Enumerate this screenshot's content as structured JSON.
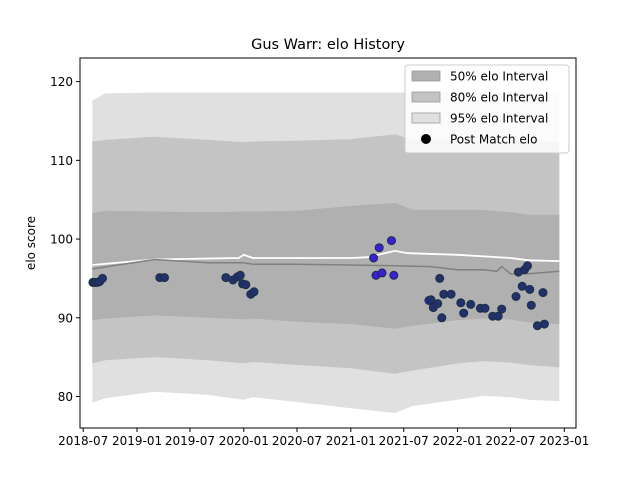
{
  "chart_data": {
    "type": "line",
    "title": "Gus Warr: elo History",
    "xlabel": "",
    "ylabel": "elo score",
    "xlim": [
      "2018-06-20",
      "2023-02-10"
    ],
    "ylim": [
      76,
      123
    ],
    "x_ticks": [
      "2018-07",
      "2019-01",
      "2019-07",
      "2020-01",
      "2020-07",
      "2021-01",
      "2021-07",
      "2022-01",
      "2022-07",
      "2023-01"
    ],
    "x_tick_labels": [
      "2018-07",
      "2019-01",
      "2019-07",
      "2020-01",
      "2020-07",
      "2021-01",
      "2021-07",
      "2022-01",
      "2022-07",
      "2023-01"
    ],
    "y_ticks": [
      80,
      90,
      100,
      110,
      120
    ],
    "y_tick_labels": [
      "80",
      "90",
      "100",
      "110",
      "120"
    ],
    "grid": false,
    "legend_position": "top-right",
    "legend": [
      {
        "label": "50% elo Interval",
        "color": "#b0b0b0",
        "kind": "patch"
      },
      {
        "label": "80% elo Interval",
        "color": "#c4c4c4",
        "kind": "patch"
      },
      {
        "label": "95% elo Interval",
        "color": "#e0e0e0",
        "kind": "patch"
      },
      {
        "label": "Post Match elo",
        "color": "#000000",
        "kind": "marker"
      }
    ],
    "intervals": {
      "dates": [
        "2018-08-01",
        "2018-09-15",
        "2019-03-01",
        "2019-09-01",
        "2020-01-01",
        "2020-02-01",
        "2020-07-01",
        "2021-01-01",
        "2021-06-01",
        "2021-08-01",
        "2022-01-01",
        "2022-04-01",
        "2022-07-01",
        "2022-09-01",
        "2022-12-15"
      ],
      "band95_upper": [
        117.6,
        118.5,
        118.6,
        118.6,
        118.6,
        118.6,
        118.6,
        118.6,
        118.6,
        118.6,
        118.6,
        118.6,
        118.6,
        118.6,
        118.6
      ],
      "band95_lower": [
        79.2,
        79.8,
        80.6,
        80.2,
        79.6,
        79.9,
        79.3,
        78.5,
        77.9,
        78.8,
        79.6,
        80.1,
        79.9,
        79.6,
        79.4
      ],
      "band80_upper": [
        112.4,
        112.6,
        113.0,
        112.6,
        112.3,
        112.4,
        112.5,
        112.7,
        113.3,
        112.6,
        112.6,
        112.5,
        112.4,
        112.5,
        112.4
      ],
      "band80_lower": [
        84.2,
        84.6,
        85.0,
        84.6,
        84.2,
        84.4,
        84.0,
        83.6,
        82.9,
        83.3,
        84.2,
        84.5,
        84.3,
        84.0,
        83.7
      ],
      "band50_upper": [
        103.3,
        103.6,
        103.5,
        103.4,
        103.5,
        103.5,
        103.6,
        104.2,
        104.6,
        103.7,
        103.7,
        103.7,
        103.4,
        103.1,
        103.1
      ],
      "band50_lower": [
        89.7,
        89.9,
        90.3,
        90.0,
        89.8,
        89.9,
        89.5,
        89.2,
        88.6,
        89.0,
        89.7,
        89.9,
        89.8,
        89.4,
        89.2
      ]
    },
    "series": [
      {
        "kind": "line",
        "color": "#ffffff",
        "x": [
          "2018-08-01",
          "2019-03-01",
          "2019-12-15",
          "2020-01-01",
          "2020-02-01",
          "2020-07-01",
          "2021-01-01",
          "2021-03-01",
          "2021-04-15",
          "2021-06-01",
          "2021-07-15",
          "2022-01-01",
          "2022-07-01",
          "2022-09-01",
          "2022-12-15"
        ],
        "y": [
          96.7,
          97.4,
          97.6,
          98.0,
          97.6,
          97.6,
          97.6,
          97.7,
          98.1,
          98.5,
          98.2,
          98.0,
          97.6,
          97.3,
          97.2
        ]
      },
      {
        "kind": "line",
        "color": "#808080",
        "x": [
          "2018-08-01",
          "2019-03-01",
          "2019-09-01",
          "2020-01-01",
          "2020-02-01",
          "2020-07-01",
          "2021-01-01",
          "2021-06-01",
          "2021-10-01",
          "2022-01-01",
          "2022-04-01",
          "2022-05-15",
          "2022-06-01",
          "2022-07-01",
          "2022-09-01",
          "2022-12-15"
        ],
        "y": [
          96.2,
          97.4,
          97.0,
          97.0,
          96.8,
          96.8,
          96.7,
          96.6,
          96.5,
          96.1,
          96.1,
          95.9,
          96.5,
          95.6,
          95.6,
          95.9
        ]
      }
    ],
    "points": [
      {
        "x": "2018-08-03",
        "y": 94.5,
        "color": "#22306b"
      },
      {
        "x": "2018-08-10",
        "y": 94.5,
        "color": "#22306b"
      },
      {
        "x": "2018-08-18",
        "y": 94.5,
        "color": "#22306b"
      },
      {
        "x": "2018-08-26",
        "y": 94.6,
        "color": "#22306b"
      },
      {
        "x": "2018-09-05",
        "y": 95.0,
        "color": "#22306b"
      },
      {
        "x": "2019-03-20",
        "y": 95.1,
        "color": "#22306b"
      },
      {
        "x": "2019-04-05",
        "y": 95.1,
        "color": "#22306b"
      },
      {
        "x": "2019-11-01",
        "y": 95.1,
        "color": "#22306b"
      },
      {
        "x": "2019-11-25",
        "y": 94.8,
        "color": "#22306b"
      },
      {
        "x": "2019-12-10",
        "y": 95.2,
        "color": "#22306b"
      },
      {
        "x": "2019-12-20",
        "y": 95.4,
        "color": "#22306b"
      },
      {
        "x": "2019-12-28",
        "y": 94.3,
        "color": "#22306b"
      },
      {
        "x": "2020-01-08",
        "y": 94.2,
        "color": "#22306b"
      },
      {
        "x": "2020-01-25",
        "y": 93.0,
        "color": "#22306b"
      },
      {
        "x": "2020-02-05",
        "y": 93.3,
        "color": "#22306b"
      },
      {
        "x": "2021-03-20",
        "y": 97.6,
        "color": "#3b1fd6"
      },
      {
        "x": "2021-03-28",
        "y": 95.4,
        "color": "#3b1fd6"
      },
      {
        "x": "2021-04-08",
        "y": 98.9,
        "color": "#3b1fd6"
      },
      {
        "x": "2021-04-18",
        "y": 95.7,
        "color": "#3b1fd6"
      },
      {
        "x": "2021-05-20",
        "y": 99.8,
        "color": "#3b1fd6"
      },
      {
        "x": "2021-05-28",
        "y": 95.4,
        "color": "#3b1fd6"
      },
      {
        "x": "2021-09-25",
        "y": 92.2,
        "color": "#3b1fd6"
      },
      {
        "x": "2021-10-02",
        "y": 92.3,
        "color": "#22306b"
      },
      {
        "x": "2021-10-10",
        "y": 91.3,
        "color": "#22306b"
      },
      {
        "x": "2021-10-25",
        "y": 91.8,
        "color": "#22306b"
      },
      {
        "x": "2021-11-01",
        "y": 95.0,
        "color": "#22306b"
      },
      {
        "x": "2021-11-08",
        "y": 90.0,
        "color": "#22306b"
      },
      {
        "x": "2021-11-15",
        "y": 93.0,
        "color": "#22306b"
      },
      {
        "x": "2021-12-10",
        "y": 93.0,
        "color": "#22306b"
      },
      {
        "x": "2022-01-12",
        "y": 91.9,
        "color": "#22306b"
      },
      {
        "x": "2022-01-22",
        "y": 90.6,
        "color": "#22306b"
      },
      {
        "x": "2022-02-15",
        "y": 91.7,
        "color": "#22306b"
      },
      {
        "x": "2022-03-20",
        "y": 91.2,
        "color": "#22306b"
      },
      {
        "x": "2022-04-05",
        "y": 91.2,
        "color": "#22306b"
      },
      {
        "x": "2022-05-01",
        "y": 90.2,
        "color": "#22306b"
      },
      {
        "x": "2022-05-20",
        "y": 90.2,
        "color": "#22306b"
      },
      {
        "x": "2022-06-01",
        "y": 91.1,
        "color": "#22306b"
      },
      {
        "x": "2022-07-20",
        "y": 92.7,
        "color": "#22306b"
      },
      {
        "x": "2022-07-28",
        "y": 95.8,
        "color": "#22306b"
      },
      {
        "x": "2022-08-10",
        "y": 94.0,
        "color": "#22306b"
      },
      {
        "x": "2022-08-18",
        "y": 96.1,
        "color": "#22306b"
      },
      {
        "x": "2022-08-28",
        "y": 96.6,
        "color": "#22306b"
      },
      {
        "x": "2022-09-05",
        "y": 93.6,
        "color": "#22306b"
      },
      {
        "x": "2022-09-10",
        "y": 91.6,
        "color": "#22306b"
      },
      {
        "x": "2022-10-01",
        "y": 89.0,
        "color": "#22306b"
      },
      {
        "x": "2022-10-20",
        "y": 93.2,
        "color": "#22306b"
      },
      {
        "x": "2022-10-25",
        "y": 89.2,
        "color": "#22306b"
      }
    ]
  }
}
